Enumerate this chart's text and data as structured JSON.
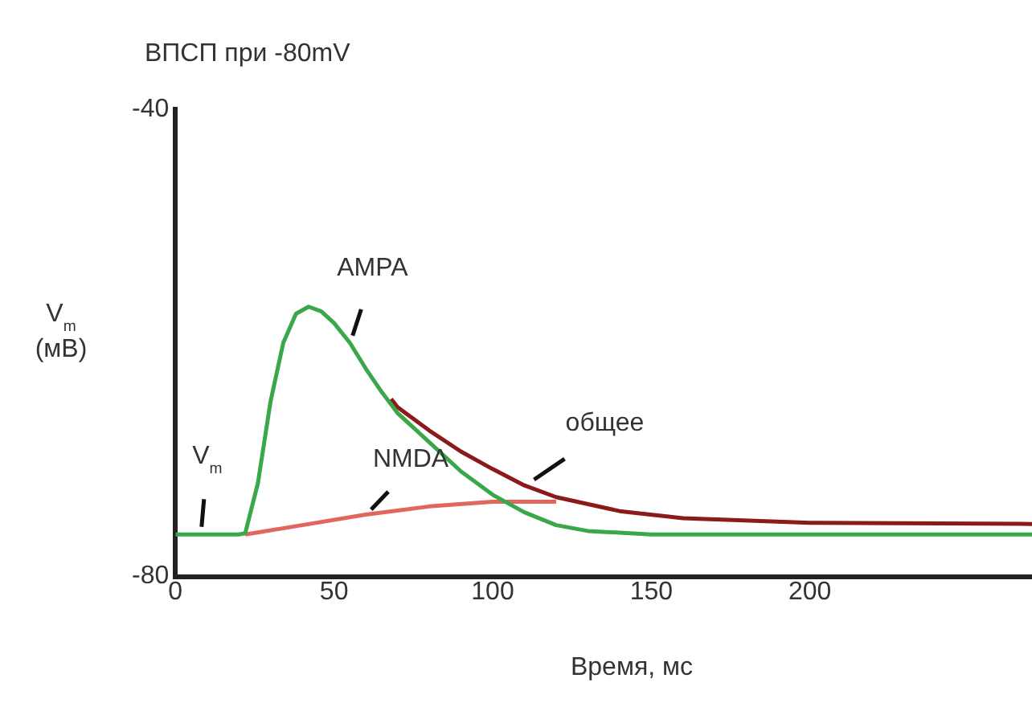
{
  "chart_data": {
    "type": "line",
    "title": "ВПСП при -80mV",
    "xlabel": "Время, мс",
    "ylabel": "V$_{m}$ (мВ)",
    "xlim": [
      0,
      270
    ],
    "xticks": [
      0,
      50,
      100,
      150,
      200
    ],
    "ylim": [
      -80,
      -40
    ],
    "yticks": [
      -80,
      -40
    ],
    "grid": false,
    "legend": false,
    "marker": "none",
    "line_style": "solid",
    "series": [
      {
        "name": "NMDA",
        "color": "#e0665e",
        "x": [
          22,
          40,
          60,
          80,
          100,
          120
        ],
        "values": [
          -76.4,
          -75.6,
          -74.7,
          -74,
          -73.6,
          -73.6
        ]
      },
      {
        "name": "общее",
        "color": "#8b1a1a",
        "x": [
          68,
          70,
          80,
          90,
          100,
          110,
          120,
          140,
          160,
          200,
          270
        ],
        "values": [
          -64.8,
          -65.5,
          -67.5,
          -69.3,
          -70.8,
          -72.2,
          -73.2,
          -74.4,
          -75,
          -75.4,
          -75.5
        ]
      },
      {
        "name": "AMPA",
        "color": "#3aa84a",
        "x": [
          0,
          20,
          22,
          26,
          30,
          34,
          38,
          42,
          46,
          50,
          55,
          60,
          65,
          70,
          80,
          90,
          100,
          110,
          120,
          130,
          150,
          270
        ],
        "values": [
          -76.4,
          -76.4,
          -76.3,
          -72,
          -65,
          -60,
          -57.5,
          -56.9,
          -57.3,
          -58.3,
          -60,
          -62.2,
          -64.2,
          -66,
          -68.5,
          -71,
          -73,
          -74.5,
          -75.6,
          -76.1,
          -76.4,
          -76.4
        ]
      }
    ],
    "annotations": [
      {
        "text": "V$_{m}$",
        "x": 8,
        "y": -76.4
      }
    ]
  }
}
